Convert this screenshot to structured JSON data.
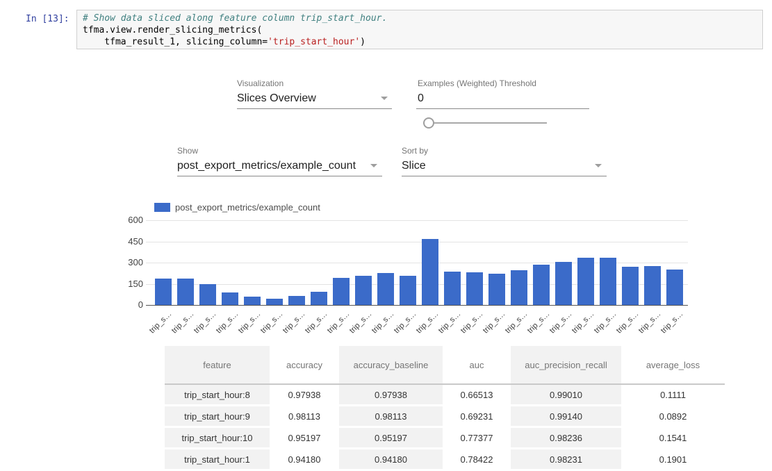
{
  "notebook": {
    "prompt": "In [13]:",
    "code": {
      "comment": "# Show data sliced along feature column trip_start_hour.",
      "line2": "tfma.view.render_slicing_metrics(",
      "line3_pre": "    tfma_result_1, slicing_column=",
      "line3_string": "'trip_start_hour'",
      "line3_post": ")"
    }
  },
  "controls": {
    "visualization": {
      "label": "Visualization",
      "value": "Slices Overview"
    },
    "threshold": {
      "label": "Examples (Weighted) Threshold",
      "value": "0"
    },
    "show": {
      "label": "Show",
      "value": "post_export_metrics/example_count"
    },
    "sort": {
      "label": "Sort by",
      "value": "Slice"
    }
  },
  "chart_data": {
    "type": "bar",
    "legend": [
      "post_export_metrics/example_count"
    ],
    "legend_position": "top",
    "categories": [
      "trip_s…",
      "trip_s…",
      "trip_s…",
      "trip_s…",
      "trip_s…",
      "trip_s…",
      "trip_s…",
      "trip_s…",
      "trip_s…",
      "trip_s…",
      "trip_s…",
      "trip_s…",
      "trip_s…",
      "trip_s…",
      "trip_s…",
      "trip_s…",
      "trip_s…",
      "trip_s…",
      "trip_s…",
      "trip_s…",
      "trip_s…",
      "trip_s…",
      "trip_s…",
      "trip_s…"
    ],
    "values": [
      185,
      186,
      148,
      90,
      61,
      45,
      65,
      95,
      190,
      206,
      228,
      206,
      466,
      236,
      232,
      221,
      246,
      285,
      305,
      336,
      336,
      271,
      277,
      252
    ],
    "title": "",
    "xlabel": "",
    "ylabel": "",
    "ylim": [
      0,
      600
    ],
    "yticks": [
      0,
      150,
      300,
      450,
      600
    ],
    "grid": true,
    "bar_color": "#3b6bc9"
  },
  "table": {
    "columns": [
      "feature",
      "accuracy",
      "accuracy_baseline",
      "auc",
      "auc_precision_recall",
      "average_loss"
    ],
    "rows": [
      [
        "trip_start_hour:8",
        "0.97938",
        "0.97938",
        "0.66513",
        "0.99010",
        "0.1111"
      ],
      [
        "trip_start_hour:9",
        "0.98113",
        "0.98113",
        "0.69231",
        "0.99140",
        "0.0892"
      ],
      [
        "trip_start_hour:10",
        "0.95197",
        "0.95197",
        "0.77377",
        "0.98236",
        "0.1541"
      ],
      [
        "trip_start_hour:1",
        "0.94180",
        "0.94180",
        "0.78422",
        "0.98231",
        "0.1901"
      ]
    ]
  },
  "colors": {
    "bar": "#3b6bc9",
    "prompt": "#303f9f",
    "comment": "#408080",
    "string": "#ba2121"
  }
}
